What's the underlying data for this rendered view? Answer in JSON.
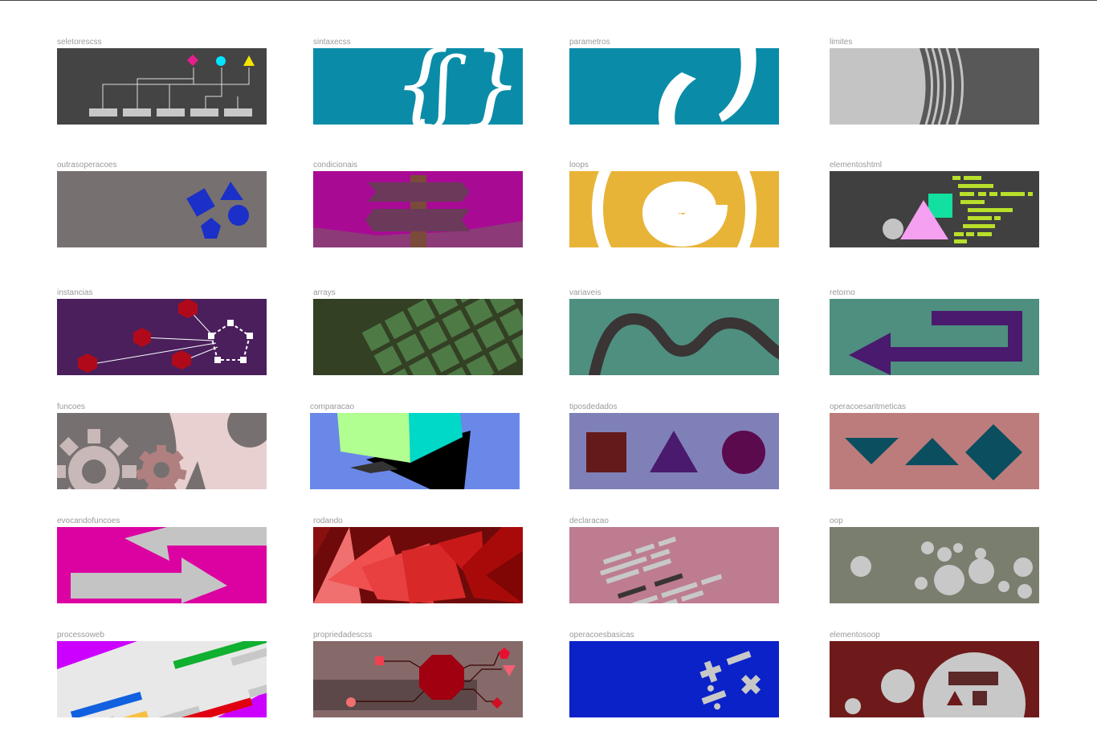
{
  "cards": [
    {
      "label": "seletorescss",
      "bg": "#444444"
    },
    {
      "label": "sintaxecss",
      "bg": "#0a8ca8"
    },
    {
      "label": "parametros",
      "bg": "#0a8ca8"
    },
    {
      "label": "limites",
      "bg": "#585858"
    },
    {
      "label": "outrasoperacoes",
      "bg": "#777070"
    },
    {
      "label": "condicionais",
      "bg": "#a90a94"
    },
    {
      "label": "loops",
      "bg": "#e8b438"
    },
    {
      "label": "elementoshtml",
      "bg": "#404040"
    },
    {
      "label": "instancias",
      "bg": "#4a1f5c"
    },
    {
      "label": "arrays",
      "bg": "#334024"
    },
    {
      "label": "variaveis",
      "bg": "#4e8f80"
    },
    {
      "label": "retorno",
      "bg": "#4e8f80"
    },
    {
      "label": "funcoes",
      "bg": "#777070"
    },
    {
      "label": "comparacao",
      "bg": "#6a88e8"
    },
    {
      "label": "tiposdedados",
      "bg": "#8080b8"
    },
    {
      "label": "operacoesaritmeticas",
      "bg": "#bd7c7c"
    },
    {
      "label": "evocandofuncoes",
      "bg": "#dc02a2"
    },
    {
      "label": "rodando",
      "bg": "#6e0a0a"
    },
    {
      "label": "declaracao",
      "bg": "#bd7c90"
    },
    {
      "label": "oop",
      "bg": "#7a7e6e"
    },
    {
      "label": "processoweb",
      "bg": "#e8e8e8"
    },
    {
      "label": "propriedadescss",
      "bg": "#866a6a"
    },
    {
      "label": "operacoesbasicas",
      "bg": "#0a22c8"
    },
    {
      "label": "elementosoop",
      "bg": "#6e1a1a"
    }
  ]
}
